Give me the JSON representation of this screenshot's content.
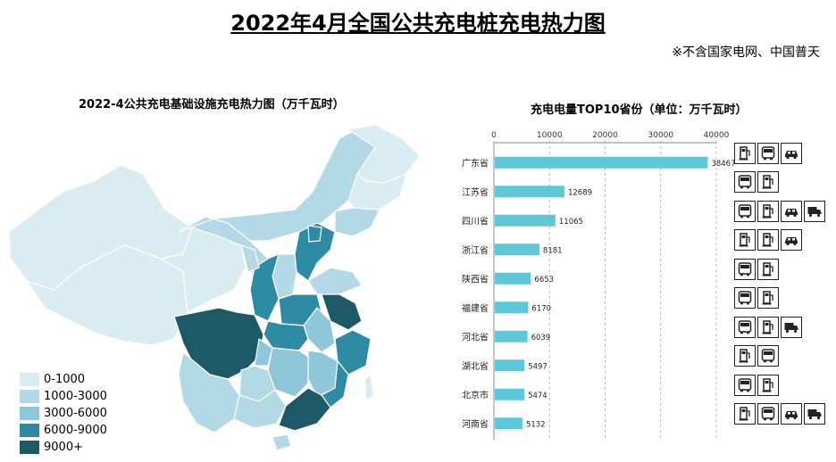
{
  "header": {
    "title": "2022年4月全国公共充电桩充电热力图",
    "note": "※不含国家电网、中国普天"
  },
  "map": {
    "title": "2022-4公共充电基础设施充电热力图（万千瓦时）",
    "legend": [
      {
        "label": "0-1000",
        "color": "#d9ecf2"
      },
      {
        "label": "1000-3000",
        "color": "#b3d8e6"
      },
      {
        "label": "3000-6000",
        "color": "#8ec6da"
      },
      {
        "label": "6000-9000",
        "color": "#2f8ba3"
      },
      {
        "label": "9000+",
        "color": "#1d5966"
      }
    ]
  },
  "chart_data": {
    "type": "bar",
    "orientation": "horizontal",
    "title": "充电电量TOP10省份（单位：万千瓦时）",
    "categories": [
      "广东省",
      "江苏省",
      "四川省",
      "浙江省",
      "陕西省",
      "福建省",
      "河北省",
      "湖北省",
      "北京市",
      "河南省"
    ],
    "values": [
      38467,
      12689,
      11065,
      8181,
      6653,
      6170,
      6039,
      5497,
      5474,
      5132
    ],
    "x_ticks": [
      0,
      10000,
      20000,
      30000,
      40000
    ],
    "xlim": [
      0,
      40000
    ],
    "bar_color": "#5ec8d8",
    "grid": true
  },
  "icons": [
    [
      "charger-icon",
      "bus-icon",
      "car-icon"
    ],
    [
      "bus-icon",
      "charger-icon"
    ],
    [
      "bus-icon",
      "charger-icon",
      "car-icon",
      "truck-icon"
    ],
    [
      "charger-icon",
      "charger-icon",
      "car-icon"
    ],
    [
      "bus-icon",
      "charger-icon"
    ],
    [
      "bus-icon",
      "charger-icon"
    ],
    [
      "bus-icon",
      "charger-icon",
      "truck-icon"
    ],
    [
      "charger-icon",
      "bus-icon"
    ],
    [
      "bus-icon",
      "charger-icon"
    ],
    [
      "charger-icon",
      "bus-icon",
      "car-icon",
      "truck-icon"
    ]
  ]
}
